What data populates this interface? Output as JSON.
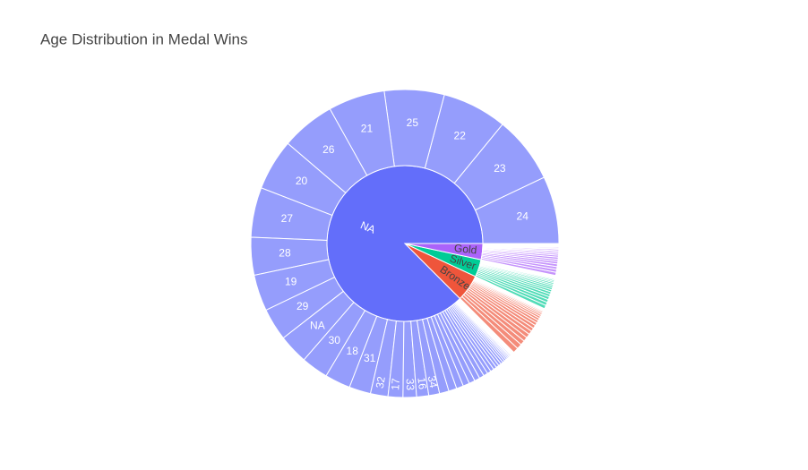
{
  "chart_data": {
    "type": "sunburst",
    "title": "Age Distribution in Medal Wins",
    "nodes": [
      {
        "label": "NA",
        "value": 3094,
        "color": "#636efa",
        "children": [
          {
            "label": "24",
            "value": 250
          },
          {
            "label": "23",
            "value": 248
          },
          {
            "label": "22",
            "value": 240
          },
          {
            "label": "25",
            "value": 222
          },
          {
            "label": "21",
            "value": 210
          },
          {
            "label": "26",
            "value": 200
          },
          {
            "label": "20",
            "value": 190
          },
          {
            "label": "27",
            "value": 185
          },
          {
            "label": "28",
            "value": 140
          },
          {
            "label": "19",
            "value": 135
          },
          {
            "label": "29",
            "value": 120
          },
          {
            "label": "NA",
            "value": 110
          },
          {
            "label": "30",
            "value": 100
          },
          {
            "label": "18",
            "value": 95
          },
          {
            "label": "31",
            "value": 80
          },
          {
            "label": "32",
            "value": 65
          },
          {
            "label": "17",
            "value": 55
          },
          {
            "label": "33",
            "value": 50
          },
          {
            "label": "16",
            "value": 45
          },
          {
            "label": "34",
            "value": 40
          },
          {
            "label": null,
            "value": 35
          },
          {
            "label": null,
            "value": 30
          },
          {
            "label": null,
            "value": 26
          },
          {
            "label": null,
            "value": 24
          },
          {
            "label": null,
            "value": 22
          },
          {
            "label": null,
            "value": 20
          },
          {
            "label": null,
            "value": 18
          },
          {
            "label": null,
            "value": 16
          },
          {
            "label": null,
            "value": 14
          },
          {
            "label": null,
            "value": 13
          },
          {
            "label": null,
            "value": 12
          },
          {
            "label": null,
            "value": 11
          },
          {
            "label": null,
            "value": 10
          },
          {
            "label": null,
            "value": 9
          },
          {
            "label": null,
            "value": 8
          },
          {
            "label": null,
            "value": 7
          },
          {
            "label": null,
            "value": 6
          },
          {
            "label": null,
            "value": 5
          },
          {
            "label": null,
            "value": 5
          },
          {
            "label": null,
            "value": 4
          },
          {
            "label": null,
            "value": 4
          },
          {
            "label": null,
            "value": 3
          },
          {
            "label": null,
            "value": 3
          },
          {
            "label": null,
            "value": 2
          },
          {
            "label": null,
            "value": 2
          },
          {
            "label": null,
            "value": 2
          },
          {
            "label": null,
            "value": 1
          },
          {
            "label": null,
            "value": 1
          },
          {
            "label": null,
            "value": 1
          }
        ]
      },
      {
        "label": "Bronze",
        "value": 196,
        "color": "#ef553b",
        "children": [
          {
            "label": null,
            "value": 20
          },
          {
            "label": null,
            "value": 19
          },
          {
            "label": null,
            "value": 17
          },
          {
            "label": null,
            "value": 16
          },
          {
            "label": null,
            "value": 15
          },
          {
            "label": null,
            "value": 14
          },
          {
            "label": null,
            "value": 13
          },
          {
            "label": null,
            "value": 12
          },
          {
            "label": null,
            "value": 11
          },
          {
            "label": null,
            "value": 10
          },
          {
            "label": null,
            "value": 9
          },
          {
            "label": null,
            "value": 8
          },
          {
            "label": null,
            "value": 7
          },
          {
            "label": null,
            "value": 6
          },
          {
            "label": null,
            "value": 5
          },
          {
            "label": null,
            "value": 4
          },
          {
            "label": null,
            "value": 3
          },
          {
            "label": null,
            "value": 3
          },
          {
            "label": null,
            "value": 2
          },
          {
            "label": null,
            "value": 2
          }
        ]
      },
      {
        "label": "Silver",
        "value": 128,
        "color": "#00cc96",
        "children": [
          {
            "label": null,
            "value": 13
          },
          {
            "label": null,
            "value": 12
          },
          {
            "label": null,
            "value": 11
          },
          {
            "label": null,
            "value": 11
          },
          {
            "label": null,
            "value": 10
          },
          {
            "label": null,
            "value": 9
          },
          {
            "label": null,
            "value": 8
          },
          {
            "label": null,
            "value": 8
          },
          {
            "label": null,
            "value": 7
          },
          {
            "label": null,
            "value": 6
          },
          {
            "label": null,
            "value": 6
          },
          {
            "label": null,
            "value": 5
          },
          {
            "label": null,
            "value": 5
          },
          {
            "label": null,
            "value": 4
          },
          {
            "label": null,
            "value": 3
          },
          {
            "label": null,
            "value": 3
          },
          {
            "label": null,
            "value": 2
          },
          {
            "label": null,
            "value": 2
          },
          {
            "label": null,
            "value": 2
          },
          {
            "label": null,
            "value": 1
          }
        ]
      },
      {
        "label": "Gold",
        "value": 118,
        "color": "#ab63fa",
        "children": [
          {
            "label": null,
            "value": 12
          },
          {
            "label": null,
            "value": 11
          },
          {
            "label": null,
            "value": 10
          },
          {
            "label": null,
            "value": 10
          },
          {
            "label": null,
            "value": 9
          },
          {
            "label": null,
            "value": 8
          },
          {
            "label": null,
            "value": 8
          },
          {
            "label": null,
            "value": 7
          },
          {
            "label": null,
            "value": 6
          },
          {
            "label": null,
            "value": 6
          },
          {
            "label": null,
            "value": 5
          },
          {
            "label": null,
            "value": 5
          },
          {
            "label": null,
            "value": 4
          },
          {
            "label": null,
            "value": 4
          },
          {
            "label": null,
            "value": 3
          },
          {
            "label": null,
            "value": 3
          },
          {
            "label": null,
            "value": 2
          },
          {
            "label": null,
            "value": 2
          },
          {
            "label": null,
            "value": 2
          },
          {
            "label": null,
            "value": 1
          }
        ]
      }
    ]
  }
}
